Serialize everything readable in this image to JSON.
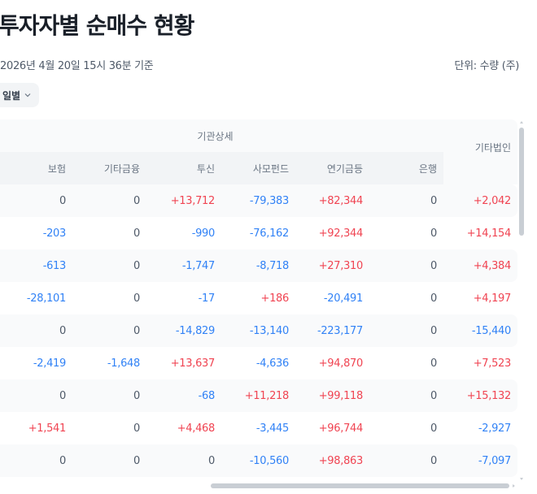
{
  "header": {
    "title": "투자자별 순매수 현황",
    "timestamp": "2026년 4월 20일 15시 36분 기준",
    "unit": "단위: 수량 (주)"
  },
  "period_select": {
    "selected": "일별",
    "icon": "chevron-down-icon"
  },
  "table": {
    "group_header": "기관상세",
    "columns": [
      "보험",
      "기타금융",
      "투신",
      "사모펀드",
      "연기금등",
      "은행",
      "기타법인"
    ],
    "rows": [
      [
        "0",
        "0",
        "+13,712",
        "-79,383",
        "+82,344",
        "0",
        "+2,042"
      ],
      [
        "-203",
        "0",
        "-990",
        "-76,162",
        "+92,344",
        "0",
        "+14,154"
      ],
      [
        "-613",
        "0",
        "-1,747",
        "-8,718",
        "+27,310",
        "0",
        "+4,384"
      ],
      [
        "-28,101",
        "0",
        "-17",
        "+186",
        "-20,491",
        "0",
        "+4,197"
      ],
      [
        "0",
        "0",
        "-14,829",
        "-13,140",
        "-223,177",
        "0",
        "-15,440"
      ],
      [
        "-2,419",
        "-1,648",
        "+13,637",
        "-4,636",
        "+94,870",
        "0",
        "+7,523"
      ],
      [
        "0",
        "0",
        "-68",
        "+11,218",
        "+99,118",
        "0",
        "+15,132"
      ],
      [
        "+1,541",
        "0",
        "+4,468",
        "-3,445",
        "+96,744",
        "0",
        "-2,927"
      ],
      [
        "0",
        "0",
        "0",
        "-10,560",
        "+98,863",
        "0",
        "-7,097"
      ]
    ]
  },
  "colors": {
    "positive": "#f04452",
    "negative": "#3182f6",
    "neutral": "#4e5968",
    "header_bg": "#f9fafb",
    "subheader_bg": "#f2f4f6"
  }
}
